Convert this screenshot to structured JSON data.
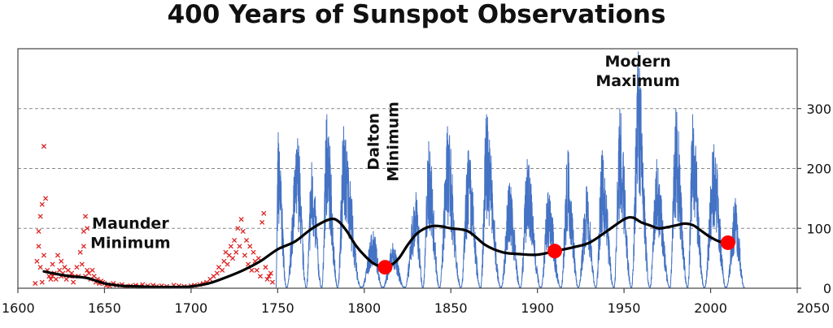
{
  "chart_data": {
    "type": "line",
    "title": "400 Years of Sunspot Observations",
    "xlabel": "",
    "ylabel": "",
    "xlim": [
      1600,
      2050
    ],
    "ylim": [
      0,
      400
    ],
    "x_ticks": [
      1600,
      1650,
      1700,
      1750,
      1800,
      1850,
      1900,
      1950,
      2000,
      2050
    ],
    "y_ticks": [
      0,
      100,
      200,
      300
    ],
    "y_axis_side": "right",
    "grid": "horizontal dashed",
    "colors": {
      "early_observations": "#dd2222",
      "monthly_sunspots": "#4472c4",
      "smoothed": "#000000",
      "highlight_points": "#ff0000"
    },
    "annotations": [
      {
        "lines": [
          "Maunder",
          "Minimum"
        ],
        "x": 1665,
        "y": 100,
        "rotated": false
      },
      {
        "lines": [
          "Dalton",
          "Minimum"
        ],
        "x": 1812,
        "y": 245,
        "rotated": true
      },
      {
        "lines": [
          "Modern",
          "Maximum"
        ],
        "x": 1958,
        "y": 370,
        "rotated": false
      }
    ],
    "series": [
      {
        "kind": "early-scatter",
        "x": [
          1610,
          1611,
          1612,
          1612,
          1613,
          1613,
          1614,
          1614,
          1615,
          1615,
          1616,
          1617,
          1618,
          1619,
          1620,
          1620,
          1621,
          1622,
          1623,
          1624,
          1625,
          1625,
          1626,
          1627,
          1628,
          1629,
          1630,
          1631,
          1632,
          1633,
          1634,
          1635,
          1636,
          1637,
          1638,
          1638,
          1639,
          1639,
          1640,
          1640,
          1641,
          1642,
          1643,
          1644,
          1645,
          1646,
          1647,
          1648,
          1649,
          1650,
          1651,
          1652,
          1653,
          1655,
          1657,
          1660,
          1662,
          1665,
          1668,
          1670,
          1672,
          1675,
          1678,
          1680,
          1683,
          1686,
          1690,
          1693,
          1696,
          1700,
          1702,
          1705,
          1707,
          1709,
          1711,
          1713,
          1715,
          1716,
          1718,
          1719,
          1720,
          1721,
          1722,
          1723,
          1724,
          1725,
          1726,
          1727,
          1728,
          1729,
          1730,
          1731,
          1732,
          1733,
          1734,
          1735,
          1736,
          1737,
          1738,
          1739,
          1740,
          1741,
          1742,
          1743,
          1744,
          1745,
          1746,
          1747
        ],
        "y": [
          8,
          45,
          95,
          70,
          120,
          35,
          140,
          10,
          237,
          55,
          150,
          30,
          20,
          15,
          40,
          20,
          25,
          15,
          55,
          30,
          45,
          20,
          25,
          35,
          15,
          30,
          20,
          25,
          10,
          20,
          35,
          20,
          60,
          40,
          95,
          70,
          120,
          20,
          100,
          30,
          25,
          15,
          30,
          20,
          10,
          15,
          8,
          12,
          10,
          8,
          5,
          6,
          4,
          8,
          5,
          6,
          3,
          4,
          5,
          3,
          6,
          4,
          5,
          3,
          4,
          3,
          5,
          4,
          3,
          4,
          5,
          6,
          8,
          10,
          15,
          20,
          25,
          35,
          30,
          45,
          60,
          40,
          55,
          70,
          50,
          80,
          60,
          100,
          70,
          115,
          95,
          55,
          80,
          40,
          70,
          30,
          60,
          45,
          30,
          50,
          20,
          110,
          125,
          35,
          15,
          20,
          25,
          10
        ]
      },
      {
        "kind": "monthly-line",
        "cycle_starts": [
          1749.0,
          1755.2,
          1766.5,
          1775.5,
          1784.7,
          1798.3,
          1810.6,
          1823.3,
          1833.9,
          1843.5,
          1855.9,
          1867.2,
          1878.9,
          1890.2,
          1902.0,
          1913.6,
          1923.6,
          1933.8,
          1944.2,
          1954.3,
          1964.9,
          1976.5,
          1986.8,
          1996.4,
          2008.9,
          2019.5
        ],
        "cycle_peaks": [
          1750.3,
          1761.5,
          1769.7,
          1778.4,
          1788.1,
          1805.2,
          1816.4,
          1829.9,
          1837.2,
          1848.1,
          1860.1,
          1870.6,
          1883.9,
          1894.1,
          1906.2,
          1917.6,
          1928.4,
          1937.4,
          1947.5,
          1958.2,
          1968.9,
          1979.9,
          1989.6,
          2001.9,
          2014.3
        ],
        "cycle_amplitudes": [
          260,
          250,
          210,
          290,
          270,
          95,
          75,
          160,
          245,
          270,
          230,
          290,
          175,
          215,
          160,
          230,
          170,
          230,
          300,
          395,
          215,
          300,
          290,
          240,
          150
        ]
      },
      {
        "kind": "smoothed-line",
        "x": [
          1615,
          1620,
          1630,
          1640,
          1650,
          1660,
          1670,
          1680,
          1690,
          1700,
          1710,
          1720,
          1730,
          1740,
          1750,
          1760,
          1770,
          1780,
          1785,
          1790,
          1795,
          1800,
          1805,
          1810,
          1815,
          1820,
          1825,
          1830,
          1835,
          1840,
          1845,
          1850,
          1860,
          1870,
          1880,
          1890,
          1900,
          1910,
          1920,
          1930,
          1940,
          1950,
          1955,
          1960,
          1965,
          1970,
          1975,
          1980,
          1985,
          1990,
          1995,
          2000,
          2005,
          2010
        ],
        "y": [
          28,
          25,
          20,
          17,
          8,
          4,
          3,
          2,
          2,
          3,
          8,
          18,
          30,
          45,
          65,
          78,
          100,
          115,
          112,
          95,
          72,
          55,
          42,
          36,
          38,
          50,
          72,
          90,
          100,
          104,
          103,
          100,
          95,
          72,
          60,
          57,
          56,
          62,
          68,
          76,
          95,
          115,
          118,
          110,
          105,
          100,
          102,
          105,
          108,
          105,
          95,
          85,
          78,
          75
        ]
      },
      {
        "kind": "highlight-points",
        "x": [
          1812,
          1910,
          2010
        ],
        "y": [
          35,
          62,
          76
        ]
      }
    ]
  }
}
